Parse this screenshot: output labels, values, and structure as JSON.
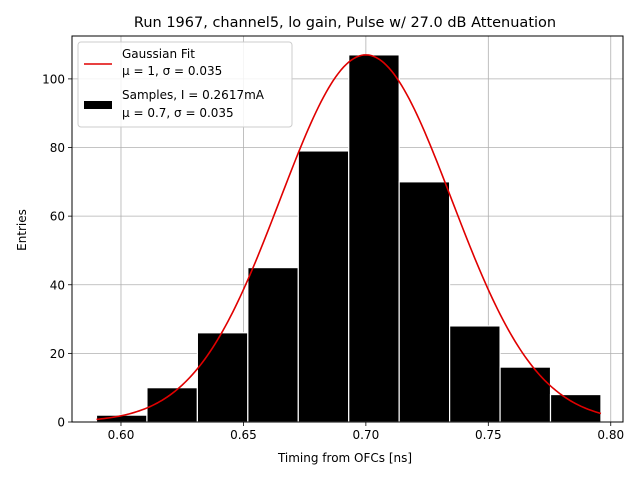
{
  "chart_data": {
    "type": "bar",
    "title": "Run 1967, channel5, lo gain, Pulse w/ 27.0 dB Attenuation",
    "xlabel": "Timing from OFCs [ns]",
    "ylabel": "Entries",
    "xlim": [
      0.58,
      0.805
    ],
    "ylim": [
      0,
      112.5
    ],
    "xticks": [
      0.6,
      0.65,
      0.7,
      0.75,
      0.8
    ],
    "xtick_labels": [
      "0.60",
      "0.65",
      "0.70",
      "0.75",
      "0.80"
    ],
    "yticks": [
      0,
      20,
      40,
      60,
      80,
      100
    ],
    "ytick_labels": [
      "0",
      "20",
      "40",
      "60",
      "80",
      "100"
    ],
    "grid": true,
    "legend_position": "top-left",
    "histogram": {
      "bin_edges": [
        0.59,
        0.6106,
        0.6312,
        0.6518,
        0.6724,
        0.693,
        0.7136,
        0.7342,
        0.7548,
        0.7754,
        0.796
      ],
      "values": [
        2,
        10,
        26,
        45,
        79,
        107,
        70,
        28,
        16,
        8
      ],
      "color": "#000000",
      "edge_color": "#ffffff"
    },
    "fit": {
      "x_range": [
        0.59,
        0.796
      ],
      "peak": 107,
      "mean": 0.7,
      "sigma": 0.035,
      "color": "#e00000"
    },
    "legend": [
      {
        "line1": "Gaussian Fit",
        "line2": "μ = 1, σ = 0.035",
        "swatch": "line",
        "color": "#e00000"
      },
      {
        "line1": "Samples, I = 0.2617mA",
        "line2": "μ = 0.7, σ = 0.035",
        "swatch": "bar",
        "color": "#000000"
      }
    ]
  }
}
